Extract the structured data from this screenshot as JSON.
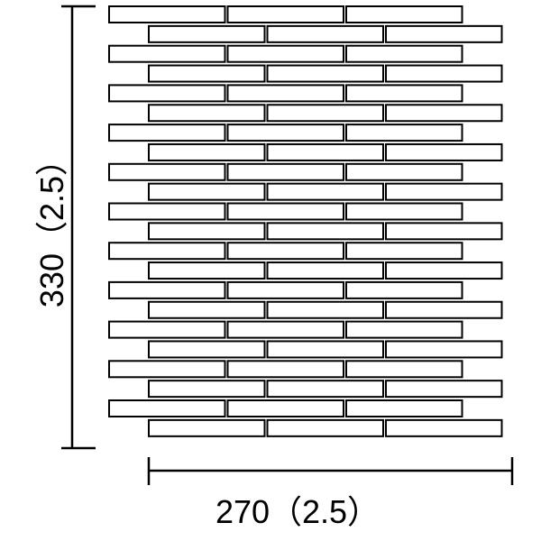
{
  "diagram": {
    "width_label": "270（2.5）",
    "height_label": "330（2.5）",
    "rows": 22,
    "tiles_per_row": 3,
    "stroke_color": "#000000",
    "fill_color": "#ffffff"
  }
}
